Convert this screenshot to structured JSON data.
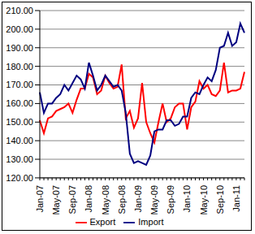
{
  "chart_data": {
    "type": "line",
    "categories": [
      "Jan-07",
      null,
      null,
      null,
      "May-07",
      null,
      null,
      null,
      "Sep-07",
      null,
      null,
      null,
      "Jan-08",
      null,
      null,
      null,
      "May-08",
      null,
      null,
      null,
      "Sep-08",
      null,
      null,
      null,
      "Jan-09",
      null,
      null,
      null,
      "May-09",
      null,
      null,
      null,
      "Sep-09",
      null,
      null,
      null,
      "Jan-10",
      null,
      null,
      null,
      "May-10",
      null,
      null,
      null,
      "Sep-10",
      null,
      null,
      null,
      "Jan-11",
      null,
      null
    ],
    "series": [
      {
        "name": "Export",
        "color": "#ff0000",
        "values": [
          151,
          144,
          152,
          153,
          156,
          157,
          158,
          160,
          155,
          162,
          168,
          168,
          176,
          174,
          165,
          167,
          175,
          171,
          168,
          169,
          181,
          152,
          156,
          147,
          152,
          171,
          150,
          144,
          139,
          150,
          160,
          150,
          152,
          158,
          160,
          160,
          146,
          158,
          161,
          172,
          168,
          170,
          165,
          164,
          167,
          182,
          166,
          167,
          167,
          168,
          177
        ]
      },
      {
        "name": "Import",
        "color": "#000080",
        "values": [
          166,
          155,
          160,
          160,
          163,
          165,
          170,
          167,
          171,
          175,
          173,
          168,
          182,
          175,
          167,
          170,
          175,
          172,
          169,
          170,
          167,
          155,
          133,
          128,
          129,
          128,
          127,
          132,
          145,
          146,
          146,
          151,
          151,
          148,
          149,
          153,
          153,
          163,
          166,
          165,
          170,
          174,
          172,
          178,
          190,
          191,
          198,
          191,
          193,
          203,
          198
        ]
      }
    ],
    "ylim": [
      120,
      210
    ],
    "yticks": [
      {
        "value": 120,
        "label": "120.00"
      },
      {
        "value": 130,
        "label": "130.00"
      },
      {
        "value": 140,
        "label": "140.00"
      },
      {
        "value": 150,
        "label": "150.00"
      },
      {
        "value": 160,
        "label": "160.00"
      },
      {
        "value": 170,
        "label": "170.00"
      },
      {
        "value": 180,
        "label": "180.00"
      },
      {
        "value": 190,
        "label": "190.00"
      },
      {
        "value": 200,
        "label": "200.00"
      },
      {
        "value": 210,
        "label": "210.00"
      }
    ],
    "grid": true,
    "legend": "bottom"
  }
}
